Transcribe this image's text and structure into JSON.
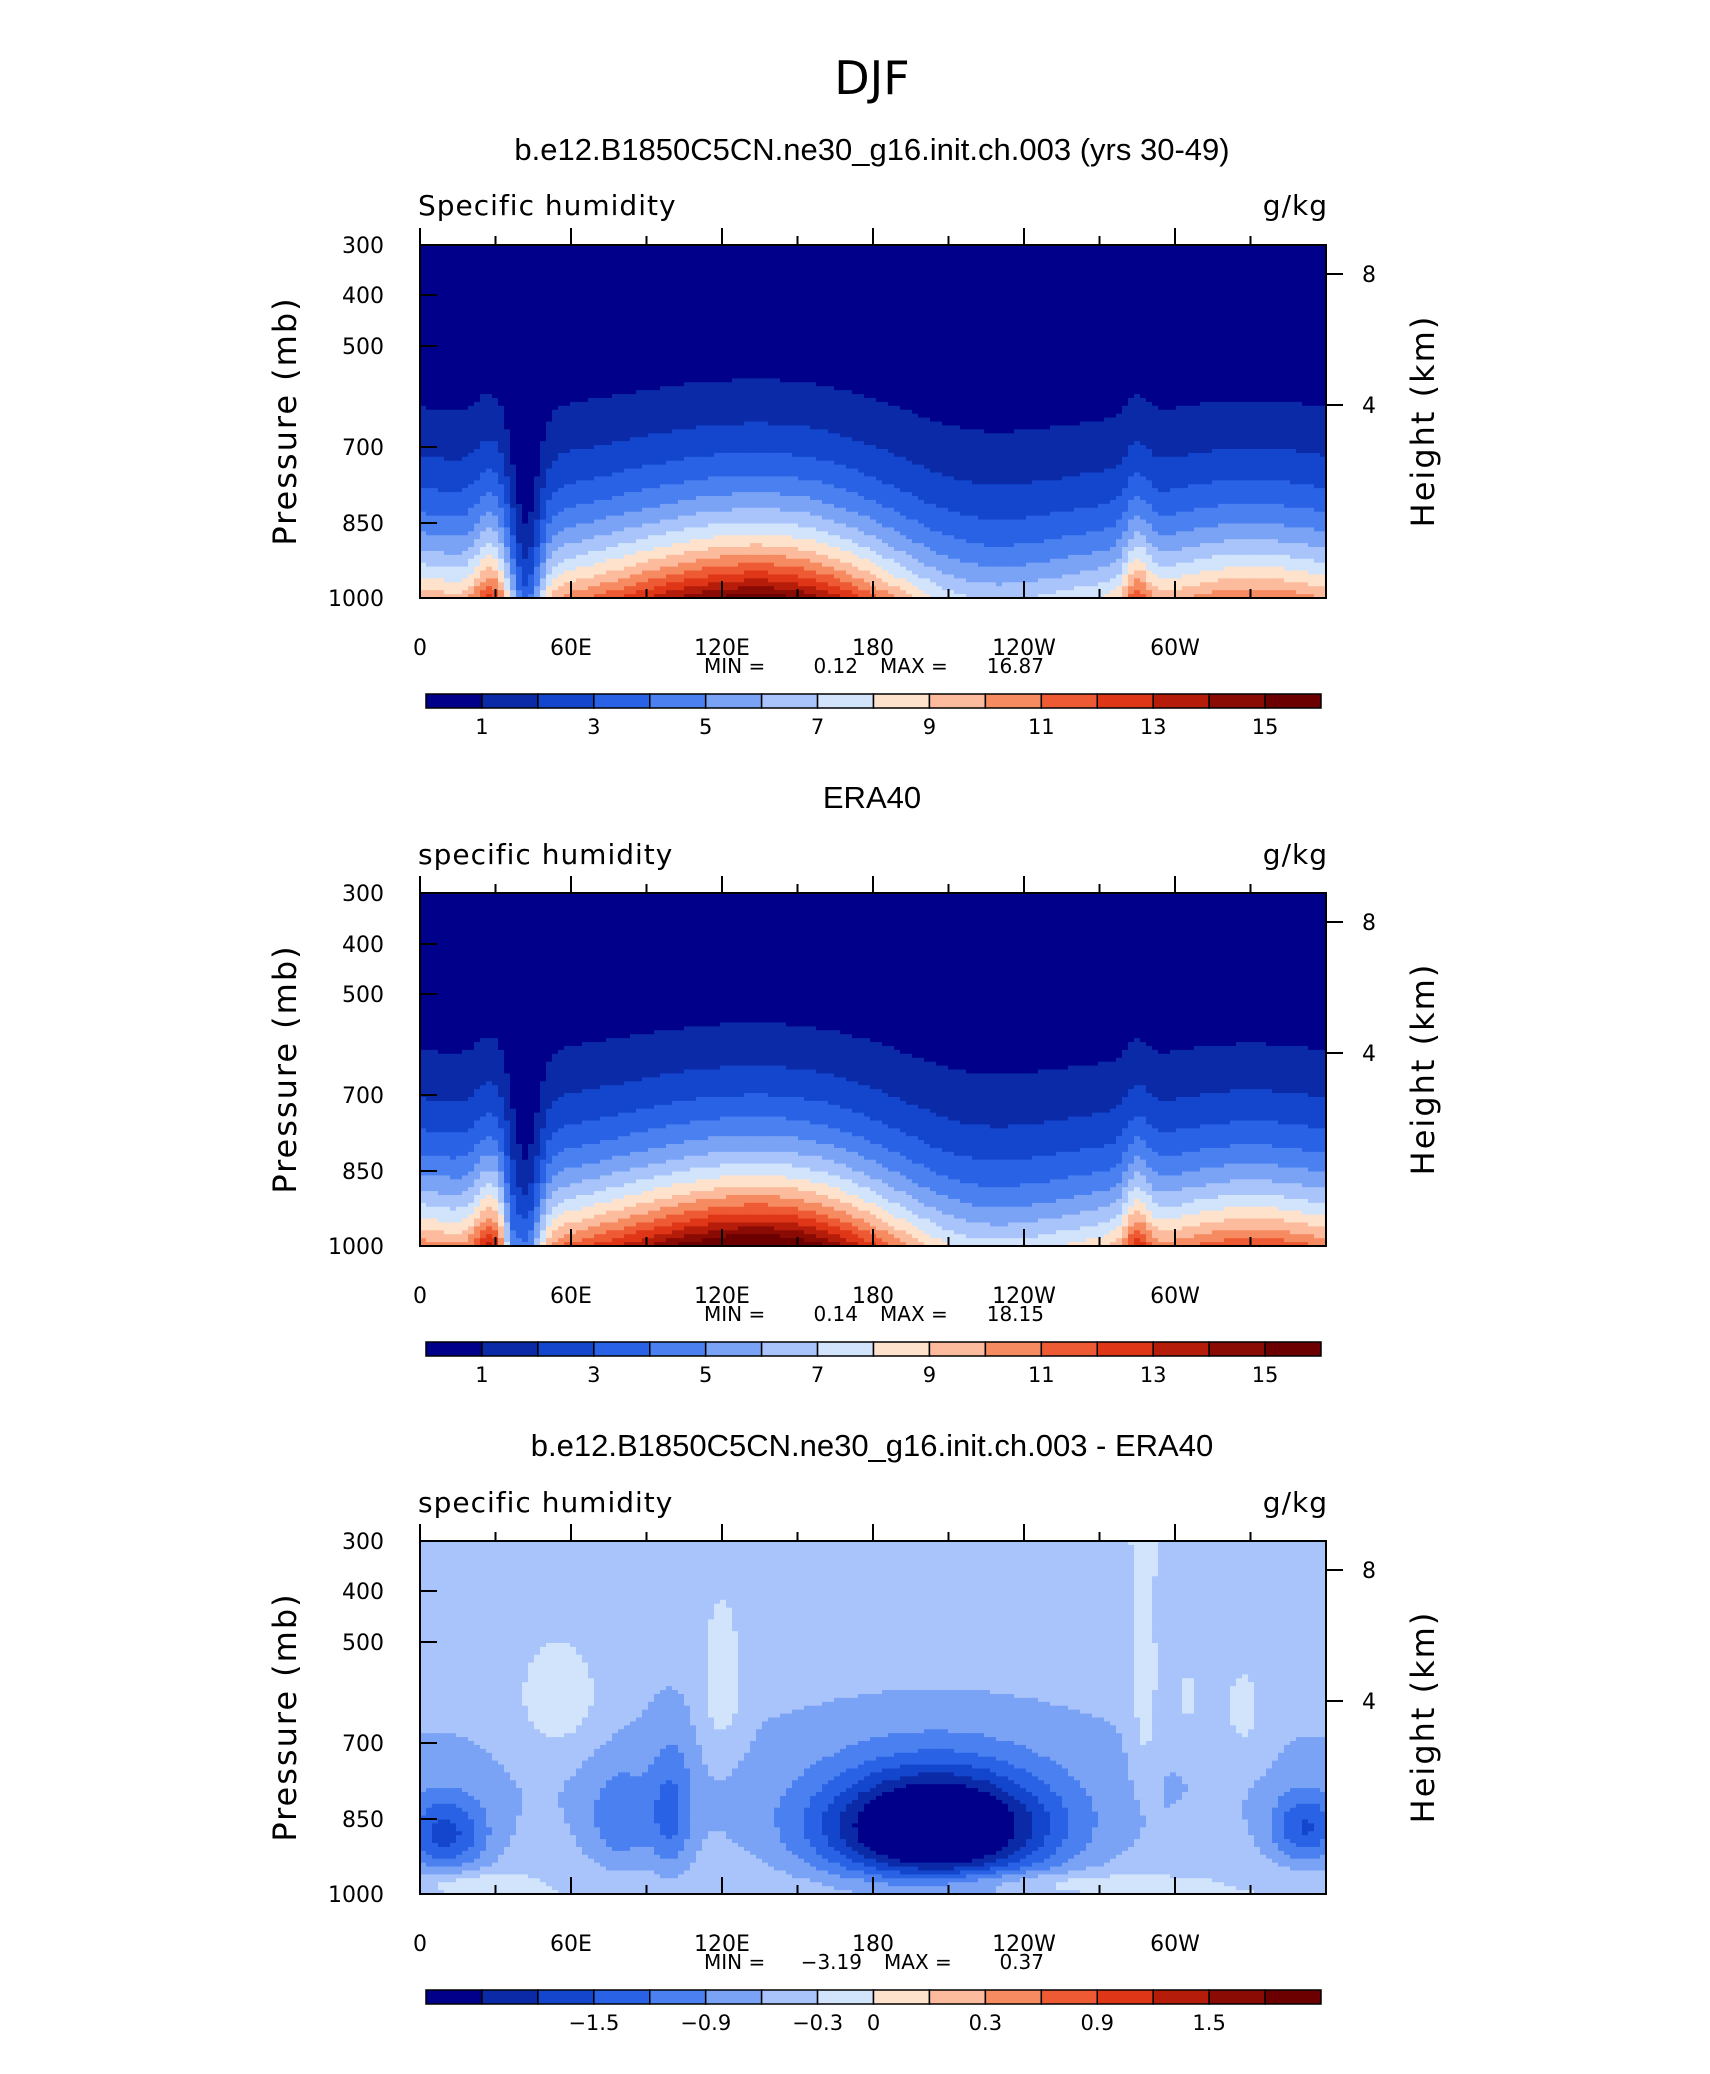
{
  "page_title": "DJF",
  "chart_data": [
    {
      "type": "heatmap",
      "title": "b.e12.B1850C5CN.ne30_g16.init.ch.003 (yrs 30-49)",
      "left_label": "Specific humidity",
      "right_label": "g/kg",
      "xlabel": "",
      "ylabel": "Pressure (mb)",
      "y2label": "Height (km)",
      "x_ticks": [
        "0",
        "60E",
        "120E",
        "180",
        "120W",
        "60W"
      ],
      "x_tick_values": [
        0,
        60,
        120,
        180,
        240,
        300
      ],
      "xlim": [
        0,
        360
      ],
      "y_ticks": [
        "300",
        "400",
        "500",
        "700",
        "850",
        "1000"
      ],
      "y_tick_values": [
        300,
        400,
        500,
        700,
        850,
        1000
      ],
      "ylim": [
        1000,
        300
      ],
      "y_scale": "log",
      "y2_ticks": [
        "8",
        "4"
      ],
      "min_label": "MIN =",
      "min": "0.12",
      "max_label": "MAX =",
      "max": "16.87",
      "colorbar_ticks": [
        "1",
        "3",
        "5",
        "7",
        "9",
        "11",
        "13",
        "15"
      ],
      "colorbar_levels": [
        1,
        2,
        3,
        4,
        5,
        6,
        7,
        8,
        9,
        10,
        11,
        12,
        13,
        14,
        15
      ],
      "colorbar_colors": [
        "#00008b",
        "#0a2aa8",
        "#1346cc",
        "#2a62e6",
        "#4a80f0",
        "#7aa2f5",
        "#a8c4fb",
        "#d2e4fc",
        "#fee2cc",
        "#fbbb9c",
        "#f68a60",
        "#ee5a33",
        "#e03618",
        "#b51c0a",
        "#8a0a04",
        "#6c0000"
      ],
      "field": "humidity",
      "field_params": {
        "scale": 1.0,
        "ridge": 0.0
      },
      "terrain": [
        [
          7,
          37,
          1000,
          930
        ],
        [
          28,
          40,
          930,
          860
        ],
        [
          100,
          104,
          1000,
          930
        ],
        [
          112,
          120,
          1000,
          930
        ],
        [
          124,
          127,
          1000,
          930
        ],
        [
          280,
          309,
          1000,
          930
        ]
      ]
    },
    {
      "type": "heatmap",
      "title": "ERA40",
      "left_label": "specific humidity",
      "right_label": "g/kg",
      "xlabel": "",
      "ylabel": "Pressure (mb)",
      "y2label": "Height (km)",
      "x_ticks": [
        "0",
        "60E",
        "120E",
        "180",
        "120W",
        "60W"
      ],
      "x_tick_values": [
        0,
        60,
        120,
        180,
        240,
        300
      ],
      "xlim": [
        0,
        360
      ],
      "y_ticks": [
        "300",
        "400",
        "500",
        "700",
        "850",
        "1000"
      ],
      "y_tick_values": [
        300,
        400,
        500,
        700,
        850,
        1000
      ],
      "ylim": [
        1000,
        300
      ],
      "y_scale": "log",
      "y2_ticks": [
        "8",
        "4"
      ],
      "min_label": "MIN =",
      "min": "0.14",
      "max_label": "MAX =",
      "max": "18.15",
      "colorbar_ticks": [
        "1",
        "3",
        "5",
        "7",
        "9",
        "11",
        "13",
        "15"
      ],
      "colorbar_levels": [
        1,
        2,
        3,
        4,
        5,
        6,
        7,
        8,
        9,
        10,
        11,
        12,
        13,
        14,
        15
      ],
      "colorbar_colors": [
        "#00008b",
        "#0a2aa8",
        "#1346cc",
        "#2a62e6",
        "#4a80f0",
        "#7aa2f5",
        "#a8c4fb",
        "#d2e4fc",
        "#fee2cc",
        "#fbbb9c",
        "#f68a60",
        "#ee5a33",
        "#e03618",
        "#b51c0a",
        "#8a0a04",
        "#6c0000"
      ],
      "field": "humidity",
      "field_params": {
        "scale": 1.08,
        "ridge": 1.0
      },
      "terrain": []
    },
    {
      "type": "heatmap",
      "title": "b.e12.B1850C5CN.ne30_g16.init.ch.003 - ERA40",
      "left_label": "specific humidity",
      "right_label": "g/kg",
      "xlabel": "",
      "ylabel": "Pressure (mb)",
      "y2label": "Height (km)",
      "x_ticks": [
        "0",
        "60E",
        "120E",
        "180",
        "120W",
        "60W"
      ],
      "x_tick_values": [
        0,
        60,
        120,
        180,
        240,
        300
      ],
      "xlim": [
        0,
        360
      ],
      "y_ticks": [
        "300",
        "400",
        "500",
        "700",
        "850",
        "1000"
      ],
      "y_tick_values": [
        300,
        400,
        500,
        700,
        850,
        1000
      ],
      "ylim": [
        1000,
        300
      ],
      "y_scale": "log",
      "y2_ticks": [
        "8",
        "4"
      ],
      "min_label": "MIN =",
      "min": "−3.19",
      "max_label": "MAX =",
      "max": "0.37",
      "colorbar_ticks": [
        "−1.5",
        "−0.9",
        "−0.3",
        "0",
        "0.3",
        "0.9",
        "1.5"
      ],
      "colorbar_levels": [
        -2.1,
        -1.8,
        -1.5,
        -1.2,
        -0.9,
        -0.6,
        -0.3,
        0,
        0.15,
        0.3,
        0.6,
        0.9,
        1.2,
        1.5,
        1.8
      ],
      "colorbar_colors": [
        "#00008b",
        "#0a2aa8",
        "#1346cc",
        "#2a62e6",
        "#4a80f0",
        "#7aa2f5",
        "#a8c4fb",
        "#d2e4fc",
        "#fee2cc",
        "#fbbb9c",
        "#f68a60",
        "#ee5a33",
        "#e03618",
        "#b51c0a",
        "#8a0a04",
        "#6c0000"
      ],
      "field": "difference",
      "field_params": {},
      "terrain": [
        [
          7,
          37,
          1000,
          930
        ],
        [
          28,
          40,
          930,
          860
        ],
        [
          100,
          104,
          1000,
          930
        ],
        [
          112,
          120,
          1000,
          930
        ],
        [
          124,
          127,
          1000,
          930
        ],
        [
          280,
          309,
          1000,
          930
        ]
      ]
    }
  ]
}
